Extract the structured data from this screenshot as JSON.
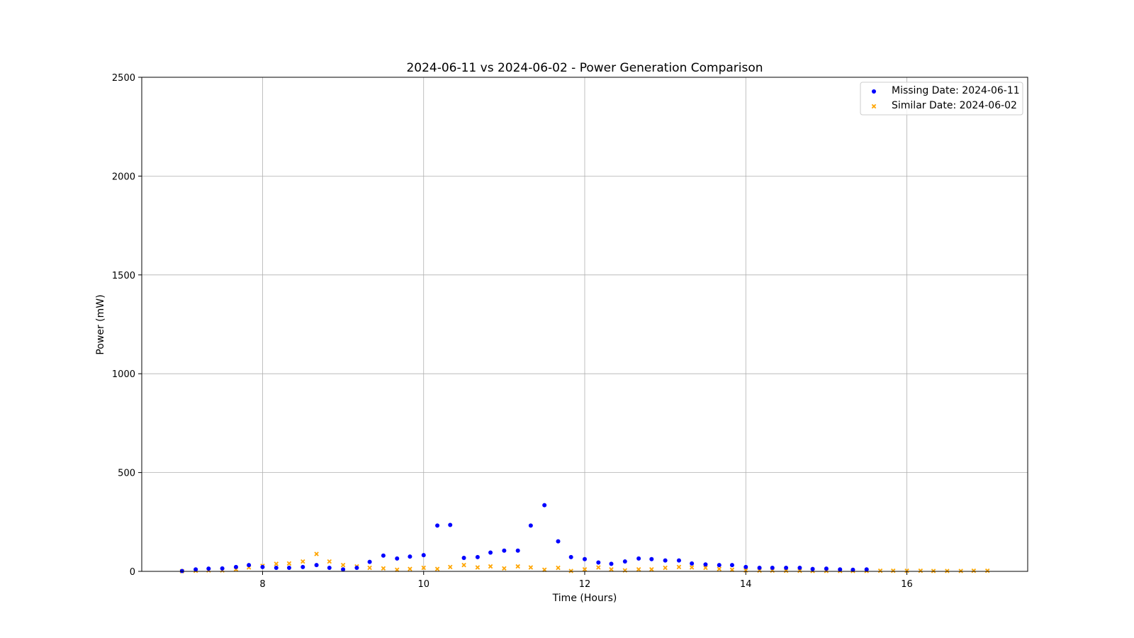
{
  "chart_data": {
    "type": "scatter",
    "title": "2024-06-11 vs 2024-06-02 - Power Generation Comparison",
    "xlabel": "Time (Hours)",
    "ylabel": "Power (mW)",
    "xlim": [
      6.5,
      17.5
    ],
    "ylim": [
      0,
      2500
    ],
    "xticks": [
      8,
      10,
      12,
      14,
      16
    ],
    "yticks": [
      0,
      500,
      1000,
      1500,
      2000,
      2500
    ],
    "grid": true,
    "legend_position": "top-right",
    "series": [
      {
        "name": "Missing Date: 2024-06-11",
        "marker": "circle",
        "color": "#0000ff",
        "x": [
          7.0,
          7.17,
          7.33,
          7.5,
          7.67,
          7.83,
          8.0,
          8.17,
          8.33,
          8.5,
          8.67,
          8.83,
          9.0,
          9.17,
          9.33,
          9.5,
          9.67,
          9.83,
          10.0,
          10.17,
          10.33,
          10.5,
          10.67,
          10.83,
          11.0,
          11.17,
          11.33,
          11.5,
          11.67,
          11.83,
          12.0,
          12.17,
          12.33,
          12.5,
          12.67,
          12.83,
          13.0,
          13.17,
          13.33,
          13.5,
          13.67,
          13.83,
          14.0,
          14.17,
          14.33,
          14.5,
          14.67,
          14.83,
          15.0,
          15.17,
          15.33,
          15.5
        ],
        "y": [
          2,
          10,
          14,
          15,
          22,
          32,
          22,
          18,
          18,
          22,
          32,
          18,
          10,
          18,
          48,
          80,
          65,
          75,
          82,
          232,
          235,
          68,
          72,
          95,
          105,
          105,
          232,
          335,
          152,
          72,
          62,
          45,
          38,
          50,
          65,
          62,
          55,
          55,
          40,
          35,
          32,
          32,
          22,
          18,
          18,
          18,
          18,
          12,
          14,
          10,
          8,
          10
        ]
      },
      {
        "name": "Similar Date: 2024-06-02",
        "marker": "x",
        "color": "#ffa500",
        "x": [
          7.0,
          7.17,
          7.33,
          7.5,
          7.67,
          7.83,
          8.0,
          8.17,
          8.33,
          8.5,
          8.67,
          8.83,
          9.0,
          9.17,
          9.33,
          9.5,
          9.67,
          9.83,
          10.0,
          10.17,
          10.33,
          10.5,
          10.67,
          10.83,
          11.0,
          11.17,
          11.33,
          11.5,
          11.67,
          11.83,
          12.0,
          12.17,
          12.33,
          12.5,
          12.67,
          12.83,
          13.0,
          13.17,
          13.33,
          13.5,
          13.67,
          13.83,
          14.0,
          14.17,
          14.33,
          14.5,
          14.67,
          14.83,
          15.0,
          15.17,
          15.33,
          15.5,
          15.67,
          15.83,
          16.0,
          16.17,
          16.33,
          16.5,
          16.67,
          16.83,
          17.0
        ],
        "y": [
          1,
          3,
          5,
          5,
          10,
          20,
          28,
          38,
          40,
          50,
          88,
          50,
          32,
          25,
          18,
          15,
          8,
          12,
          18,
          12,
          22,
          32,
          20,
          25,
          15,
          25,
          20,
          8,
          18,
          2,
          10,
          20,
          10,
          5,
          10,
          10,
          18,
          22,
          20,
          18,
          12,
          8,
          5,
          4,
          4,
          3,
          3,
          2,
          2,
          2,
          2,
          2,
          3,
          3,
          3,
          3,
          2,
          2,
          2,
          3,
          3
        ]
      }
    ]
  }
}
